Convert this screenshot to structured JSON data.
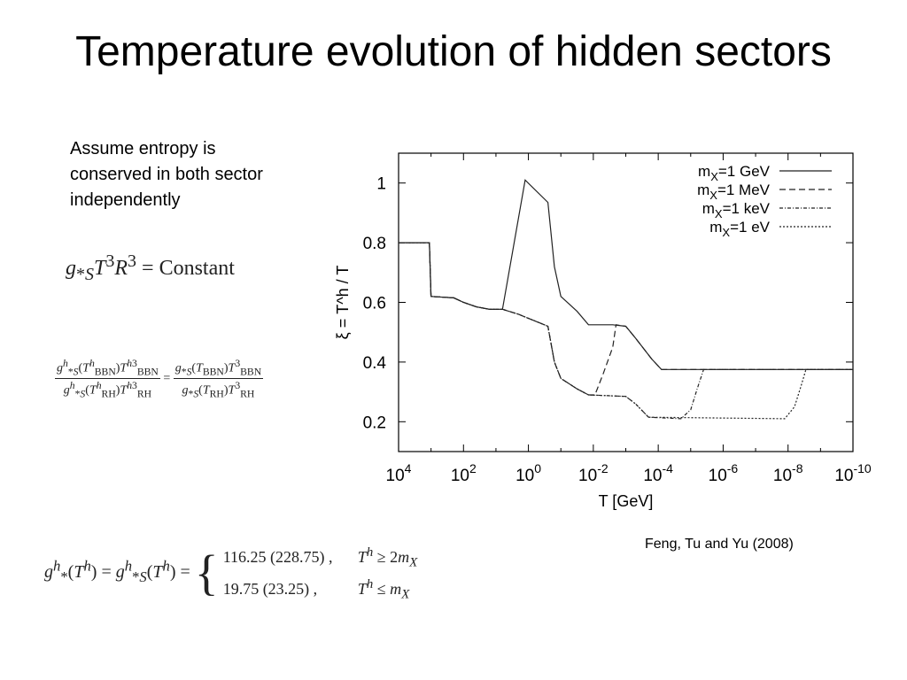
{
  "slide": {
    "title": "Temperature evolution of hidden sectors",
    "intro": "Assume entropy is conserved in both sector independently",
    "credit": "Feng, Tu and Yu (2008)"
  },
  "equations": {
    "eq1": "g*S T³ R³ = Constant",
    "eq2": "g^h_*S(T^h_BBN)T^h3_BBN / g^h_*S(T^h_RH)T^h3_RH = g_*S(T_BBN)T^3_BBN / g_*S(T_RH)T^3_RH",
    "eq3_case1_value": "116.25 (228.75) ,",
    "eq3_case2_value": "19.75 (23.25) ,"
  },
  "chart_data": {
    "type": "line",
    "xlabel": "T [GeV]",
    "ylabel": "ξ = T^h / T",
    "xscale": "log",
    "x_reversed": true,
    "xlim_log10": [
      4,
      -10
    ],
    "ylim": [
      0.1,
      1.1
    ],
    "x_ticks_log10": [
      4,
      2,
      0,
      -2,
      -4,
      -6,
      -8,
      -10
    ],
    "x_tick_labels": [
      "10^4",
      "10^2",
      "10^0",
      "10^-2",
      "10^-4",
      "10^-6",
      "10^-8",
      "10^-10"
    ],
    "y_ticks": [
      0.2,
      0.4,
      0.6,
      0.8,
      1.0
    ],
    "y_tick_labels": [
      "0.2",
      "0.4",
      "0.6",
      "0.8",
      "1"
    ],
    "legend_position": "top-right",
    "grid": false,
    "series": [
      {
        "name": "mX=1 GeV",
        "dash": "solid",
        "points": [
          [
            4,
            0.8
          ],
          [
            3.05,
            0.8
          ],
          [
            3.0,
            0.62
          ],
          [
            2.3,
            0.615
          ],
          [
            2.0,
            0.6
          ],
          [
            1.6,
            0.585
          ],
          [
            1.2,
            0.577
          ],
          [
            0.8,
            0.577
          ],
          [
            0.1,
            1.01
          ],
          [
            -0.6,
            0.935
          ],
          [
            -0.8,
            0.72
          ],
          [
            -1.0,
            0.62
          ],
          [
            -1.5,
            0.57
          ],
          [
            -1.85,
            0.525
          ],
          [
            -2.6,
            0.525
          ],
          [
            -3.0,
            0.52
          ],
          [
            -3.3,
            0.48
          ],
          [
            -3.8,
            0.41
          ],
          [
            -4.1,
            0.375
          ],
          [
            -10,
            0.375
          ]
        ]
      },
      {
        "name": "mX=1 MeV",
        "dash": "dashed",
        "points": [
          [
            4,
            0.8
          ],
          [
            3.05,
            0.8
          ],
          [
            3.0,
            0.62
          ],
          [
            2.3,
            0.615
          ],
          [
            2.0,
            0.6
          ],
          [
            1.6,
            0.585
          ],
          [
            1.2,
            0.577
          ],
          [
            0.8,
            0.577
          ],
          [
            0.3,
            0.56
          ],
          [
            -0.6,
            0.52
          ],
          [
            -0.8,
            0.4
          ],
          [
            -1.0,
            0.345
          ],
          [
            -1.5,
            0.31
          ],
          [
            -1.85,
            0.29
          ],
          [
            -2.05,
            0.29
          ],
          [
            -2.3,
            0.36
          ],
          [
            -2.6,
            0.45
          ],
          [
            -2.7,
            0.525
          ],
          [
            -3.0,
            0.52
          ],
          [
            -3.3,
            0.48
          ],
          [
            -3.8,
            0.41
          ],
          [
            -4.1,
            0.375
          ],
          [
            -10,
            0.375
          ]
        ]
      },
      {
        "name": "mX=1 keV",
        "dash": "dashdot",
        "points": [
          [
            4,
            0.8
          ],
          [
            3.05,
            0.8
          ],
          [
            3.0,
            0.62
          ],
          [
            2.3,
            0.615
          ],
          [
            2.0,
            0.6
          ],
          [
            1.6,
            0.585
          ],
          [
            1.2,
            0.577
          ],
          [
            0.8,
            0.577
          ],
          [
            0.3,
            0.56
          ],
          [
            -0.6,
            0.52
          ],
          [
            -0.8,
            0.4
          ],
          [
            -1.0,
            0.345
          ],
          [
            -1.5,
            0.31
          ],
          [
            -1.85,
            0.29
          ],
          [
            -3.0,
            0.285
          ],
          [
            -3.3,
            0.26
          ],
          [
            -3.7,
            0.215
          ],
          [
            -4.7,
            0.21
          ],
          [
            -5.0,
            0.24
          ],
          [
            -5.2,
            0.31
          ],
          [
            -5.4,
            0.375
          ],
          [
            -10,
            0.375
          ]
        ]
      },
      {
        "name": "mX=1 eV",
        "dash": "dotted",
        "points": [
          [
            4,
            0.8
          ],
          [
            3.05,
            0.8
          ],
          [
            3.0,
            0.62
          ],
          [
            2.3,
            0.615
          ],
          [
            2.0,
            0.6
          ],
          [
            1.6,
            0.585
          ],
          [
            1.2,
            0.577
          ],
          [
            0.8,
            0.577
          ],
          [
            0.3,
            0.56
          ],
          [
            -0.6,
            0.52
          ],
          [
            -0.8,
            0.4
          ],
          [
            -1.0,
            0.345
          ],
          [
            -1.5,
            0.31
          ],
          [
            -1.85,
            0.29
          ],
          [
            -3.0,
            0.285
          ],
          [
            -3.3,
            0.26
          ],
          [
            -3.7,
            0.215
          ],
          [
            -7.9,
            0.21
          ],
          [
            -8.2,
            0.25
          ],
          [
            -8.4,
            0.32
          ],
          [
            -8.55,
            0.375
          ],
          [
            -10,
            0.375
          ]
        ]
      }
    ]
  }
}
